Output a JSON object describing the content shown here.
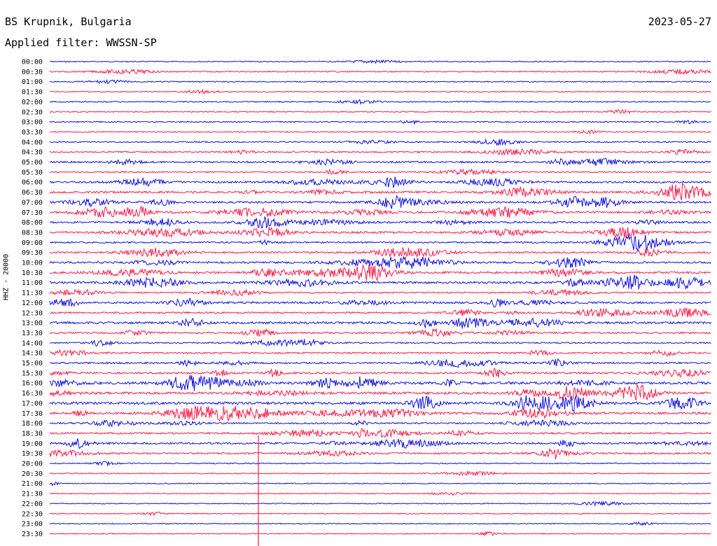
{
  "header": {
    "station": "BS Krupnik, Bulgaria",
    "date": "2023-05-27",
    "filter": "Applied filter: WWSSN-SP"
  },
  "chart_data": {
    "type": "line",
    "title": "BS Krupnik, Bulgaria",
    "ylabel": "HHZ - 20000",
    "rows": [
      "00:00",
      "00:30",
      "01:00",
      "01:30",
      "02:00",
      "02:30",
      "03:00",
      "03:30",
      "04:00",
      "04:30",
      "05:00",
      "05:30",
      "06:00",
      "06:30",
      "07:00",
      "07:30",
      "08:00",
      "08:30",
      "09:00",
      "09:30",
      "10:00",
      "10:30",
      "11:00",
      "11:30",
      "12:00",
      "12:30",
      "13:00",
      "13:30",
      "14:00",
      "14:30",
      "15:00",
      "15:30",
      "16:00",
      "16:30",
      "17:00",
      "17:30",
      "18:00",
      "18:30",
      "19:00",
      "19:30",
      "20:00",
      "20:30",
      "21:00",
      "21:30",
      "22:00",
      "22:30",
      "23:00",
      "23:30"
    ],
    "row_activity": [
      0.1,
      0.15,
      0.1,
      0.08,
      0.12,
      0.12,
      0.15,
      0.1,
      0.18,
      0.25,
      0.4,
      0.2,
      0.45,
      0.55,
      0.55,
      0.55,
      0.5,
      0.55,
      0.35,
      0.4,
      0.5,
      0.55,
      0.55,
      0.25,
      0.5,
      0.4,
      0.65,
      0.35,
      0.25,
      0.3,
      0.4,
      0.5,
      0.75,
      0.7,
      0.75,
      0.65,
      0.35,
      0.4,
      0.45,
      0.35,
      0.1,
      0.08,
      0.06,
      0.06,
      0.06,
      0.06,
      0.06,
      0.06
    ],
    "series": [
      {
        "color": "#1010e0"
      },
      {
        "color": "#ff1a4a"
      }
    ],
    "color_pattern": "alternating rows",
    "grid": false
  }
}
